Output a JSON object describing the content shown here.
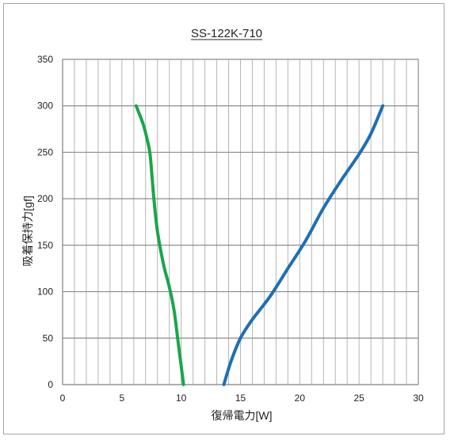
{
  "chart_data": {
    "type": "line",
    "title": "SS-122K-710",
    "xlabel": "復帰電力[W]",
    "ylabel": "吸着保持力[gf]",
    "xlim": [
      0,
      30
    ],
    "ylim": [
      0,
      350
    ],
    "x_ticks": [
      "0",
      "5",
      "10",
      "15",
      "20",
      "25",
      "30"
    ],
    "y_ticks": [
      "0",
      "50",
      "100",
      "150",
      "200",
      "250",
      "300",
      "350"
    ],
    "x_minor_step": 1,
    "y_major_step": 50,
    "grid": true,
    "legend": "none",
    "series": [
      {
        "color": "#1aa64a",
        "x": [
          10.2,
          9.8,
          9.4,
          9.0,
          8.5,
          8.0,
          7.7,
          7.4,
          7.2,
          6.8,
          6.2
        ],
        "y": [
          0,
          40,
          80,
          105,
          130,
          165,
          200,
          245,
          260,
          280,
          300
        ]
      },
      {
        "color": "#1f6fb4",
        "x": [
          13.6,
          14.2,
          15.0,
          16.0,
          17.5,
          19.0,
          20.5,
          22.0,
          23.5,
          25.0,
          26.0,
          27.0
        ],
        "y": [
          0,
          25,
          50,
          70,
          95,
          125,
          155,
          190,
          220,
          248,
          270,
          300
        ]
      }
    ]
  }
}
